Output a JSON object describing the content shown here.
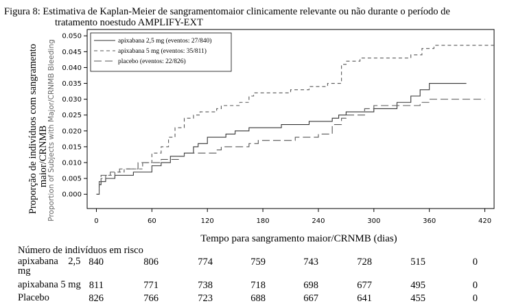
{
  "caption": {
    "line1": "Figura 8: Estimativa de Kaplan-Meier de sangramentomaior clinicamente relevante ou não durante o período de",
    "line2": "tratamento noestudo AMPLIFY-EXT"
  },
  "chart_data": {
    "type": "line",
    "step": true,
    "xlabel": "Tempo para sangramento maior/CRNMB (dias)",
    "ylabel": "Proporção de indivíduos com sangramento maior/CRNMB",
    "ylabel_ghost": "Proportion of Subjects with Major/CRNMB Bleeding",
    "xlim": [
      -10,
      430
    ],
    "ylim": [
      -0.0045,
      0.052
    ],
    "xticks": [
      0,
      60,
      120,
      180,
      240,
      300,
      360,
      420
    ],
    "yticks": [
      "0.000",
      "0.005",
      "0.010",
      "0.015",
      "0.020",
      "0.025",
      "0.030",
      "0.035",
      "0.040",
      "0.045",
      "0.050"
    ],
    "grid": false,
    "legend_position": "top-left",
    "series": [
      {
        "name": "apixabana 2,5 mg (eventos: 27/840)",
        "color": "#333333",
        "dash": "none",
        "x": [
          0,
          3,
          5,
          10,
          20,
          40,
          60,
          70,
          80,
          95,
          105,
          110,
          120,
          140,
          150,
          165,
          200,
          230,
          255,
          262,
          270,
          300,
          325,
          340,
          350,
          360,
          400
        ],
        "y": [
          0.0,
          0.003,
          0.004,
          0.005,
          0.006,
          0.007,
          0.009,
          0.01,
          0.012,
          0.013,
          0.015,
          0.016,
          0.018,
          0.019,
          0.02,
          0.021,
          0.022,
          0.023,
          0.024,
          0.025,
          0.026,
          0.027,
          0.029,
          0.031,
          0.033,
          0.035,
          0.035
        ]
      },
      {
        "name": "apixabana 5 mg (eventos: 35/811)",
        "color": "#555555",
        "dash": "5,4",
        "x": [
          0,
          3,
          5,
          10,
          20,
          30,
          50,
          60,
          70,
          78,
          85,
          95,
          105,
          112,
          130,
          135,
          155,
          165,
          170,
          210,
          230,
          250,
          265,
          270,
          285,
          300,
          320,
          340,
          352,
          365,
          430
        ],
        "y": [
          0.0,
          0.004,
          0.005,
          0.006,
          0.007,
          0.008,
          0.01,
          0.013,
          0.015,
          0.018,
          0.021,
          0.024,
          0.025,
          0.026,
          0.027,
          0.028,
          0.029,
          0.031,
          0.032,
          0.033,
          0.034,
          0.035,
          0.041,
          0.042,
          0.043,
          0.043,
          0.043,
          0.044,
          0.046,
          0.047,
          0.047
        ]
      },
      {
        "name": "placebo (eventos: 22/826)",
        "color": "#555555",
        "dash": "11,5",
        "x": [
          0,
          3,
          5,
          15,
          25,
          45,
          70,
          90,
          95,
          130,
          135,
          165,
          175,
          215,
          240,
          255,
          265,
          270,
          290,
          300,
          350,
          360,
          420
        ],
        "y": [
          0.0,
          0.004,
          0.006,
          0.007,
          0.008,
          0.01,
          0.011,
          0.012,
          0.013,
          0.014,
          0.015,
          0.016,
          0.017,
          0.018,
          0.019,
          0.022,
          0.024,
          0.025,
          0.027,
          0.028,
          0.029,
          0.03,
          0.03
        ]
      }
    ]
  },
  "risk_table": {
    "title": "Número de indivíduos em risco",
    "rows": [
      {
        "label_line1": "apixabana    2,5",
        "label_line2": "mg",
        "values": [
          "840",
          "806",
          "774",
          "759",
          "743",
          "728",
          "515",
          "0"
        ]
      },
      {
        "label_line1": "apixabana 5 mg",
        "label_line2": "",
        "values": [
          "811",
          "771",
          "738",
          "718",
          "698",
          "677",
          "495",
          "0"
        ]
      },
      {
        "label_line1": "Placebo",
        "label_line2": "",
        "values": [
          "826",
          "766",
          "723",
          "688",
          "667",
          "641",
          "455",
          "0"
        ]
      }
    ]
  }
}
